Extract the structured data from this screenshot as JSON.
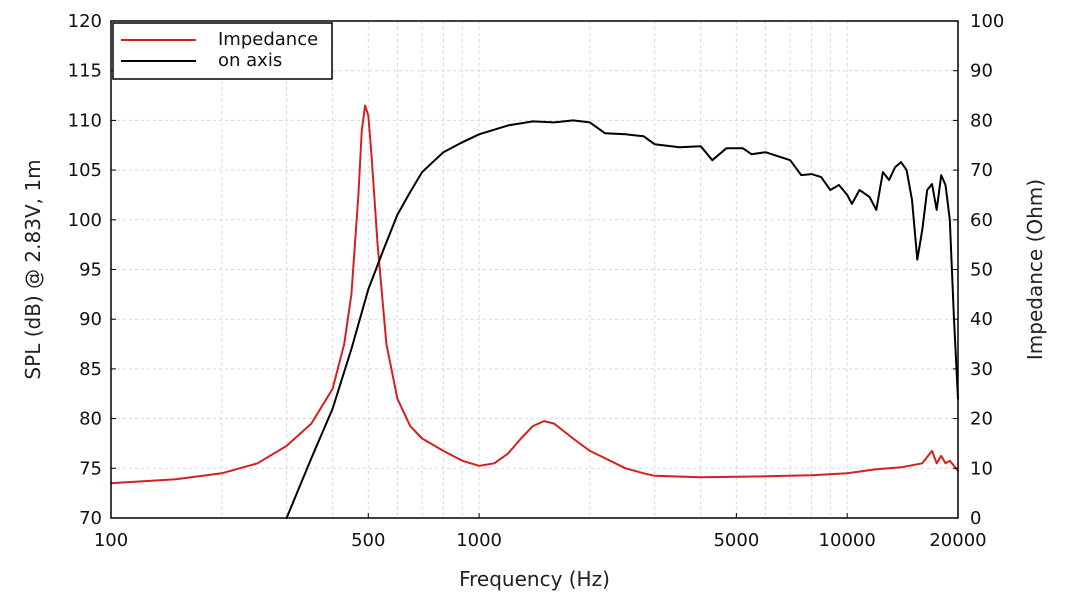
{
  "chart_data": {
    "type": "line",
    "xlabel": "Frequency (Hz)",
    "ylabel": "SPL (dB) @ 2.83V, 1m",
    "y2label": "Impedance (Ohm)",
    "xscale": "log",
    "xlim": [
      100,
      20000
    ],
    "ylim": [
      70,
      120
    ],
    "y2lim": [
      0,
      100
    ],
    "grid": true,
    "legend_position": "top-left",
    "x_ticks": [
      100,
      500,
      1000,
      5000,
      10000,
      20000
    ],
    "x_tick_labels": [
      "100",
      "500",
      "1000",
      "5000",
      "10000",
      "20000"
    ],
    "y_ticks": [
      70,
      75,
      80,
      85,
      90,
      95,
      100,
      105,
      110,
      115,
      120
    ],
    "y2_ticks": [
      0,
      10,
      20,
      30,
      40,
      50,
      60,
      70,
      80,
      90,
      100
    ],
    "series": [
      {
        "name": "Impedance",
        "axis": "right",
        "color": "#d42020",
        "points": [
          [
            100,
            7.0
          ],
          [
            150,
            7.8
          ],
          [
            200,
            9.0
          ],
          [
            250,
            11.0
          ],
          [
            300,
            14.5
          ],
          [
            350,
            19.0
          ],
          [
            400,
            26.0
          ],
          [
            430,
            35.0
          ],
          [
            450,
            45.0
          ],
          [
            470,
            65.0
          ],
          [
            480,
            78.0
          ],
          [
            490,
            83.0
          ],
          [
            500,
            81.0
          ],
          [
            510,
            73.0
          ],
          [
            530,
            55.0
          ],
          [
            560,
            35.0
          ],
          [
            600,
            24.0
          ],
          [
            650,
            18.5
          ],
          [
            700,
            16.0
          ],
          [
            800,
            13.5
          ],
          [
            900,
            11.5
          ],
          [
            1000,
            10.5
          ],
          [
            1100,
            11.0
          ],
          [
            1200,
            13.0
          ],
          [
            1300,
            16.0
          ],
          [
            1400,
            18.5
          ],
          [
            1500,
            19.5
          ],
          [
            1600,
            19.0
          ],
          [
            1800,
            16.0
          ],
          [
            2000,
            13.5
          ],
          [
            2500,
            10.0
          ],
          [
            2800,
            9.0
          ],
          [
            3000,
            8.5
          ],
          [
            4000,
            8.2
          ],
          [
            5000,
            8.3
          ],
          [
            6000,
            8.4
          ],
          [
            8000,
            8.6
          ],
          [
            10000,
            9.0
          ],
          [
            12000,
            9.8
          ],
          [
            14000,
            10.2
          ],
          [
            16000,
            11.0
          ],
          [
            17000,
            13.5
          ],
          [
            17500,
            11.0
          ],
          [
            18000,
            12.5
          ],
          [
            18500,
            11.0
          ],
          [
            19000,
            11.5
          ],
          [
            20000,
            9.5
          ]
        ]
      },
      {
        "name": "on axis",
        "axis": "left",
        "color": "#000000",
        "points": [
          [
            300,
            70.0
          ],
          [
            350,
            76.0
          ],
          [
            400,
            81.0
          ],
          [
            450,
            87.0
          ],
          [
            500,
            93.0
          ],
          [
            550,
            97.0
          ],
          [
            600,
            100.5
          ],
          [
            650,
            102.8
          ],
          [
            700,
            104.8
          ],
          [
            800,
            106.8
          ],
          [
            900,
            107.8
          ],
          [
            1000,
            108.6
          ],
          [
            1200,
            109.5
          ],
          [
            1400,
            109.9
          ],
          [
            1600,
            109.8
          ],
          [
            1800,
            110.0
          ],
          [
            2000,
            109.8
          ],
          [
            2200,
            108.7
          ],
          [
            2500,
            108.6
          ],
          [
            2800,
            108.4
          ],
          [
            3000,
            107.6
          ],
          [
            3500,
            107.3
          ],
          [
            4000,
            107.4
          ],
          [
            4300,
            106.0
          ],
          [
            4700,
            107.2
          ],
          [
            5200,
            107.2
          ],
          [
            5500,
            106.6
          ],
          [
            6000,
            106.8
          ],
          [
            7000,
            106.0
          ],
          [
            7500,
            104.5
          ],
          [
            8000,
            104.6
          ],
          [
            8500,
            104.3
          ],
          [
            9000,
            103.0
          ],
          [
            9500,
            103.5
          ],
          [
            10000,
            102.5
          ],
          [
            10300,
            101.6
          ],
          [
            10800,
            103.0
          ],
          [
            11500,
            102.3
          ],
          [
            12000,
            101.0
          ],
          [
            12500,
            104.8
          ],
          [
            13000,
            104.0
          ],
          [
            13500,
            105.3
          ],
          [
            14000,
            105.8
          ],
          [
            14500,
            105.0
          ],
          [
            15000,
            102.0
          ],
          [
            15500,
            96.0
          ],
          [
            16000,
            99.0
          ],
          [
            16500,
            103.0
          ],
          [
            17000,
            103.6
          ],
          [
            17500,
            101.0
          ],
          [
            18000,
            104.5
          ],
          [
            18500,
            103.5
          ],
          [
            19000,
            100.0
          ],
          [
            19500,
            90.0
          ],
          [
            20000,
            82.0
          ]
        ]
      }
    ]
  }
}
